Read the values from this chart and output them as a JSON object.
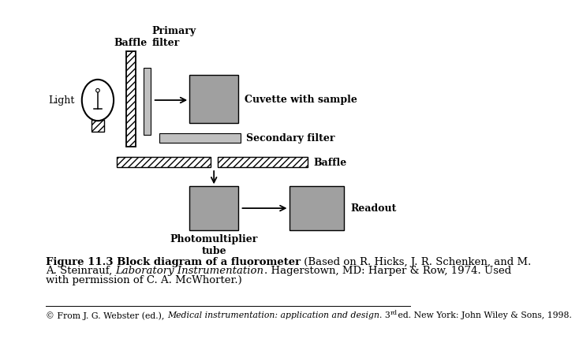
{
  "bg_color": "#ffffff",
  "gray_dark": "#a0a0a0",
  "gray_light": "#c0c0c0",
  "title_bold": "Figure 11.3 Block diagram of a fluorometer",
  "labels": {
    "light": "Light",
    "baffle_top": "Baffle",
    "primary_filter": "Primary\nfilter",
    "cuvette": "Cuvette with sample",
    "secondary_filter": "Secondary filter",
    "baffle_bottom": "Baffle",
    "photomultiplier": "Photomultiplier\ntube",
    "readout": "Readout"
  },
  "caption_line1_bold": "Figure 11.3 Block diagram of a fluorometer",
  "caption_line1_normal": " (Based on R. Hicks, J. R. Schenken, and M.",
  "caption_line2_pre": "A. Steinrauf, ",
  "caption_line2_italic": "Laboratory Instrumentation",
  "caption_line2_post": ". Hagerstown, MD: Harper & Row, 1974. Used",
  "caption_line3": "with permission of C. A. McWhorter.)",
  "footer_pre": "© From J. G. Webster (ed.), ",
  "footer_italic": "Medical instrumentation: application and design",
  "footer_post": ". 3",
  "footer_super": "rd",
  "footer_end": " ed. New York: John Wiley & Sons, 1998."
}
